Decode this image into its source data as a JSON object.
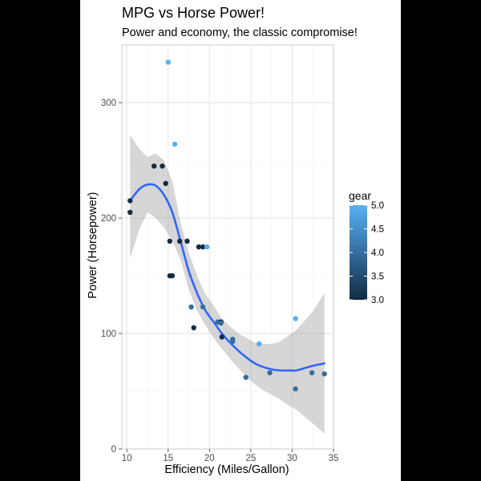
{
  "chart_data": {
    "type": "scatter",
    "title": "MPG vs Horse Power!",
    "subtitle": "Power and economy, the classic compromise!",
    "xlabel": "Efficiency (Miles/Gallon)",
    "ylabel": "Power (Horsepower)",
    "xlim": [
      9.4,
      35.0
    ],
    "ylim": [
      0,
      350
    ],
    "x_ticks": [
      10,
      15,
      20,
      25,
      30,
      35
    ],
    "y_ticks": [
      0,
      100,
      200,
      300
    ],
    "x_tick_labels": [
      "10",
      "15",
      "20",
      "25",
      "30",
      "35"
    ],
    "y_tick_labels": [
      "0",
      "100",
      "200",
      "300"
    ],
    "grid": true,
    "legend": {
      "title": "gear",
      "placement": "right",
      "type": "continuous",
      "range": [
        3.0,
        5.0
      ],
      "ticks": [
        3.0,
        3.5,
        4.0,
        4.5,
        5.0
      ],
      "tick_labels": [
        "3.0",
        "3.5",
        "4.0",
        "4.5",
        "5.0"
      ],
      "low_color": "#132B43",
      "high_color": "#56B1F7"
    },
    "points": [
      {
        "x": 21.0,
        "y": 110,
        "gear": 4
      },
      {
        "x": 21.0,
        "y": 110,
        "gear": 4
      },
      {
        "x": 22.8,
        "y": 93,
        "gear": 4
      },
      {
        "x": 21.4,
        "y": 110,
        "gear": 3
      },
      {
        "x": 18.7,
        "y": 175,
        "gear": 3
      },
      {
        "x": 18.1,
        "y": 105,
        "gear": 3
      },
      {
        "x": 14.3,
        "y": 245,
        "gear": 3
      },
      {
        "x": 24.4,
        "y": 62,
        "gear": 4
      },
      {
        "x": 22.8,
        "y": 95,
        "gear": 4
      },
      {
        "x": 19.2,
        "y": 123,
        "gear": 4
      },
      {
        "x": 17.8,
        "y": 123,
        "gear": 4
      },
      {
        "x": 16.4,
        "y": 180,
        "gear": 3
      },
      {
        "x": 17.3,
        "y": 180,
        "gear": 3
      },
      {
        "x": 15.2,
        "y": 180,
        "gear": 3
      },
      {
        "x": 10.4,
        "y": 205,
        "gear": 3
      },
      {
        "x": 10.4,
        "y": 215,
        "gear": 3
      },
      {
        "x": 14.7,
        "y": 230,
        "gear": 3
      },
      {
        "x": 32.4,
        "y": 66,
        "gear": 4
      },
      {
        "x": 30.4,
        "y": 52,
        "gear": 4
      },
      {
        "x": 33.9,
        "y": 65,
        "gear": 4
      },
      {
        "x": 21.5,
        "y": 97,
        "gear": 3
      },
      {
        "x": 15.5,
        "y": 150,
        "gear": 3
      },
      {
        "x": 15.2,
        "y": 150,
        "gear": 3
      },
      {
        "x": 13.3,
        "y": 245,
        "gear": 3
      },
      {
        "x": 19.2,
        "y": 175,
        "gear": 3
      },
      {
        "x": 27.3,
        "y": 66,
        "gear": 4
      },
      {
        "x": 26.0,
        "y": 91,
        "gear": 5
      },
      {
        "x": 30.4,
        "y": 113,
        "gear": 5
      },
      {
        "x": 15.8,
        "y": 264,
        "gear": 5
      },
      {
        "x": 19.7,
        "y": 175,
        "gear": 5
      },
      {
        "x": 15.0,
        "y": 335,
        "gear": 5
      },
      {
        "x": 21.4,
        "y": 109,
        "gear": 4
      }
    ],
    "smooth": {
      "color": "#3366FF",
      "band_color": "#999999",
      "x": [
        10.4,
        11.5,
        12.5,
        13.5,
        14.5,
        15.5,
        16.5,
        17.5,
        18.5,
        19.5,
        20.5,
        21.5,
        22.5,
        23.5,
        24.5,
        25.5,
        26.5,
        27.5,
        28.5,
        29.5,
        30.5,
        31.5,
        32.5,
        33.9
      ],
      "y": [
        215,
        225,
        229,
        228,
        220,
        205,
        180,
        154,
        135,
        120,
        110,
        100,
        92,
        85,
        79,
        74,
        71,
        69,
        68,
        68,
        68,
        70,
        72,
        74
      ],
      "lower": [
        165,
        190,
        205,
        200,
        192,
        180,
        164,
        138,
        120,
        107,
        96,
        87,
        78,
        70,
        62,
        56,
        51,
        47,
        43,
        38,
        34,
        28,
        22,
        13
      ],
      "upper": [
        272,
        260,
        253,
        256,
        250,
        232,
        196,
        170,
        150,
        134,
        124,
        113,
        106,
        100,
        96,
        92,
        91,
        91,
        93,
        98,
        103,
        111,
        119,
        135
      ]
    }
  }
}
